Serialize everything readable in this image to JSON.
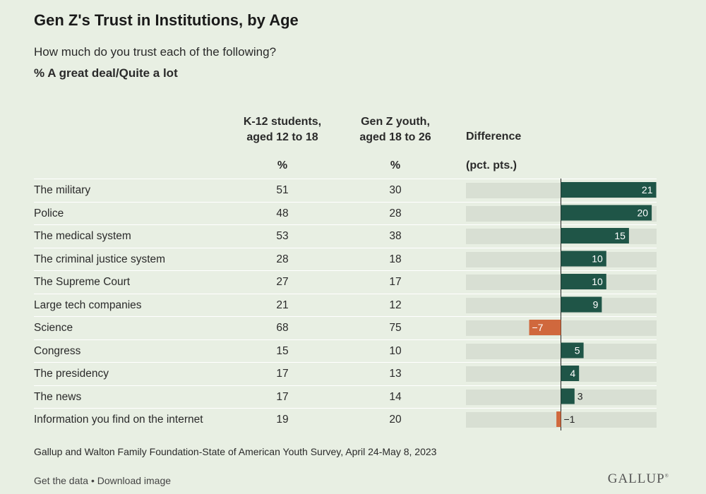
{
  "title": "Gen Z's Trust in Institutions, by Age",
  "subtitle": "How much do you trust each of the following?",
  "measure": "% A great deal/Quite a lot",
  "columns": {
    "k12_line1": "K-12 students,",
    "k12_line2": "aged 12 to 18",
    "genz_line1": "Gen Z youth,",
    "genz_line2": "aged 18 to 26",
    "pct": "%",
    "difference": "Difference",
    "difference_unit": "(pct. pts.)"
  },
  "colors": {
    "positive": "#1f5547",
    "negative": "#d0683d",
    "track": "#d8dfd3",
    "background": "#e8efe3"
  },
  "chart_data": {
    "type": "bar",
    "categories": [
      "The military",
      "Police",
      "The medical system",
      "The criminal justice system",
      "The Supreme Court",
      "Large tech companies",
      "Science",
      "Congress",
      "The presidency",
      "The news",
      "Information you find on the internet"
    ],
    "k12": [
      51,
      48,
      53,
      28,
      27,
      21,
      68,
      15,
      17,
      17,
      19
    ],
    "genz": [
      30,
      28,
      38,
      18,
      17,
      12,
      75,
      10,
      13,
      14,
      20
    ],
    "difference": [
      21,
      20,
      15,
      10,
      10,
      9,
      -7,
      5,
      4,
      3,
      -1
    ],
    "difference_labels": [
      "21",
      "20",
      "15",
      "10",
      "10",
      "9",
      "−7",
      "5",
      "4",
      "3",
      "−1"
    ],
    "xlim": [
      -21,
      21
    ]
  },
  "source": "Gallup and Walton Family Foundation-State of American Youth Survey, April 24-May 8, 2023",
  "footer": {
    "get_data": "Get the data",
    "separator": " • ",
    "download": "Download image"
  },
  "logo": "GALLUP"
}
